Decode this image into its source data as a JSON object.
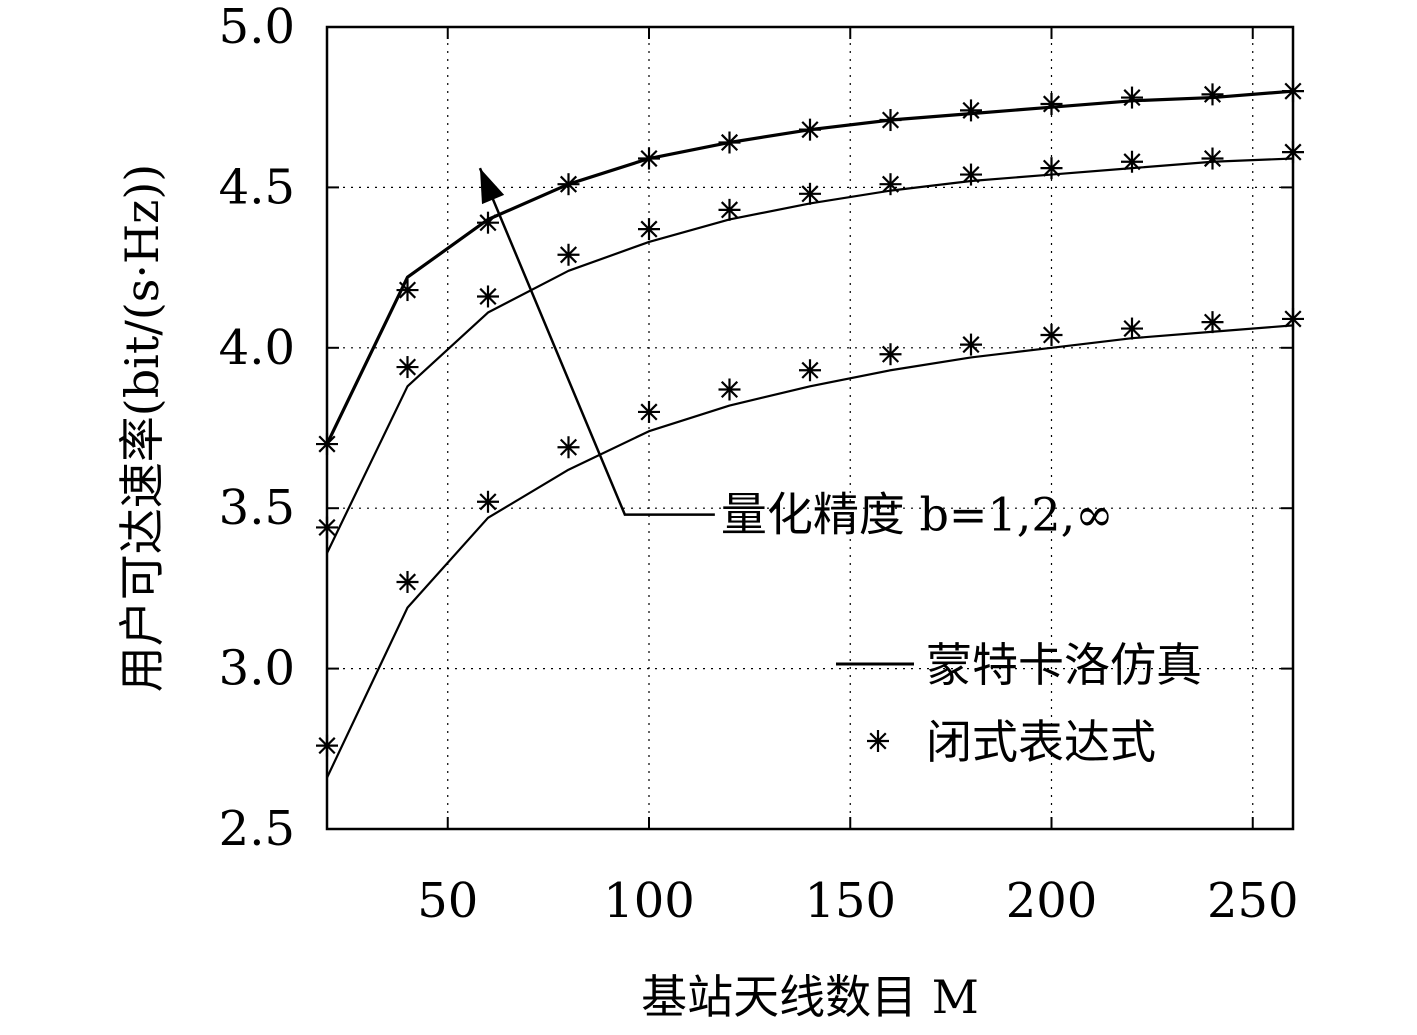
{
  "chart_data": {
    "type": "line",
    "xlabel": "基站天线数目 M",
    "ylabel": "用户可达速率(bit/(s·Hz))",
    "xlim": [
      20,
      260
    ],
    "ylim": [
      2.5,
      5.0
    ],
    "x_ticks": [
      "50",
      "100",
      "150",
      "200",
      "250"
    ],
    "y_ticks": [
      "2.5",
      "3.0",
      "3.5",
      "4.0",
      "4.5",
      "5.0"
    ],
    "grid": true,
    "x": [
      20,
      40,
      60,
      80,
      100,
      120,
      140,
      160,
      180,
      200,
      220,
      240,
      260
    ],
    "series": [
      {
        "marker": "line",
        "values": [
          2.66,
          3.19,
          3.47,
          3.62,
          3.74,
          3.82,
          3.88,
          3.93,
          3.97,
          4.0,
          4.03,
          4.05,
          4.07
        ]
      },
      {
        "marker": "line",
        "values": [
          3.36,
          3.88,
          4.11,
          4.24,
          4.33,
          4.4,
          4.45,
          4.49,
          4.52,
          4.54,
          4.56,
          4.58,
          4.59
        ]
      },
      {
        "marker": "line",
        "values": [
          3.7,
          4.22,
          4.4,
          4.51,
          4.59,
          4.64,
          4.68,
          4.71,
          4.73,
          4.75,
          4.77,
          4.78,
          4.8
        ]
      },
      {
        "marker": "star",
        "values": [
          2.76,
          3.27,
          3.52,
          3.69,
          3.8,
          3.87,
          3.93,
          3.98,
          4.01,
          4.04,
          4.06,
          4.08,
          4.09
        ]
      },
      {
        "marker": "star",
        "values": [
          3.44,
          3.94,
          4.16,
          4.29,
          4.37,
          4.43,
          4.48,
          4.51,
          4.54,
          4.56,
          4.58,
          4.59,
          4.61
        ]
      },
      {
        "marker": "star",
        "values": [
          3.7,
          4.18,
          4.39,
          4.51,
          4.59,
          4.64,
          4.68,
          4.71,
          4.74,
          4.76,
          4.78,
          4.79,
          4.8
        ]
      }
    ],
    "legend": {
      "position": "bottom-right",
      "entries": [
        {
          "label": "蒙特卡洛仿真",
          "marker": "line"
        },
        {
          "label": "闭式表达式",
          "marker": "star"
        }
      ]
    },
    "annotation": {
      "text": "量化精度 b=1,2,∞",
      "arrow_from": [
        94,
        3.48
      ],
      "arrow_to": [
        58,
        4.56
      ]
    },
    "colors": {
      "ink": "#000000",
      "grid": "#000000",
      "background": "#ffffff"
    }
  }
}
